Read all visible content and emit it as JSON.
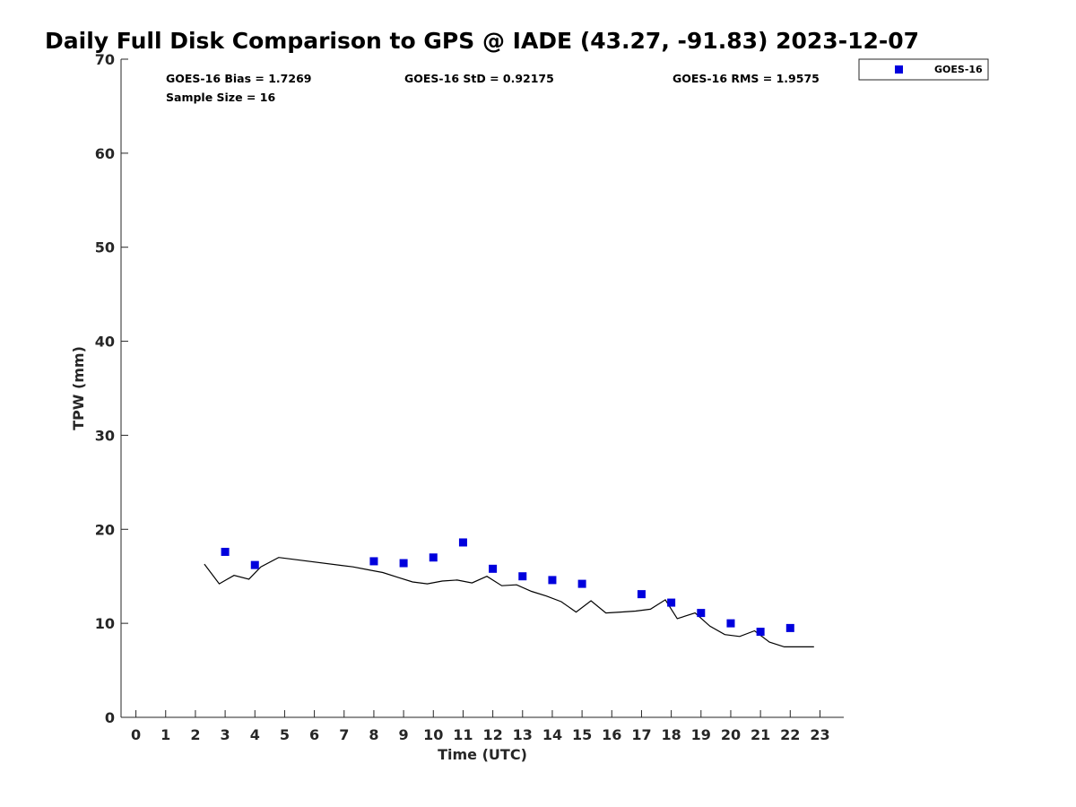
{
  "title": "Daily Full Disk Comparison to GPS @ IADE (43.27, -91.83) 2023-12-07",
  "stats": {
    "bias": "GOES-16 Bias = 1.7269",
    "std": "GOES-16 StD = 0.92175",
    "rms": "GOES-16 RMS = 1.9575",
    "sample_size": "Sample Size = 16"
  },
  "legend": {
    "label": "GOES-16"
  },
  "colors": {
    "goes": "#0000dd",
    "gps": "#000000",
    "axis": "#262626"
  },
  "chart_data": {
    "type": "scatter",
    "xlabel": "Time (UTC)",
    "ylabel": "TPW (mm)",
    "xlim": [
      -0.5,
      23.8
    ],
    "ylim": [
      0,
      70
    ],
    "xticks": [
      0,
      1,
      2,
      3,
      4,
      5,
      6,
      7,
      8,
      9,
      10,
      11,
      12,
      13,
      14,
      15,
      16,
      17,
      18,
      19,
      20,
      21,
      22,
      23
    ],
    "yticks": [
      0,
      10,
      20,
      30,
      40,
      50,
      60,
      70
    ],
    "grid": false,
    "legend_position": "top-right",
    "series": [
      {
        "name": "GOES-16",
        "kind": "scatter",
        "x": [
          3,
          4,
          8,
          9,
          10,
          11,
          12,
          13,
          14,
          15,
          17,
          18,
          19,
          20,
          21,
          22
        ],
        "y": [
          17.6,
          16.2,
          16.6,
          16.4,
          17.0,
          18.6,
          15.8,
          15.0,
          14.6,
          14.2,
          13.1,
          12.2,
          11.1,
          10.0,
          9.1,
          9.5
        ]
      },
      {
        "kind": "line",
        "x": [
          2.3,
          2.8,
          3.3,
          3.8,
          4.2,
          4.8,
          7.3,
          7.8,
          8.3,
          8.8,
          9.3,
          9.8,
          10.3,
          10.8,
          11.3,
          11.8,
          12.3,
          12.8,
          13.3,
          13.8,
          14.3,
          14.8,
          15.3,
          15.8,
          16.3,
          16.8,
          17.3,
          17.8,
          18.2,
          18.8,
          19.3,
          19.8,
          20.3,
          20.8,
          21.3,
          21.8,
          22.3,
          22.8
        ],
        "y": [
          16.3,
          14.2,
          15.1,
          14.7,
          16.0,
          17.0,
          16.0,
          15.7,
          15.4,
          14.9,
          14.4,
          14.2,
          14.5,
          14.6,
          14.3,
          15.0,
          14.0,
          14.1,
          13.4,
          12.9,
          12.3,
          11.2,
          12.4,
          11.1,
          11.2,
          11.3,
          11.5,
          12.5,
          10.5,
          11.1,
          9.7,
          8.8,
          8.6,
          9.2,
          8.0,
          7.5,
          7.5,
          7.5
        ]
      }
    ]
  }
}
